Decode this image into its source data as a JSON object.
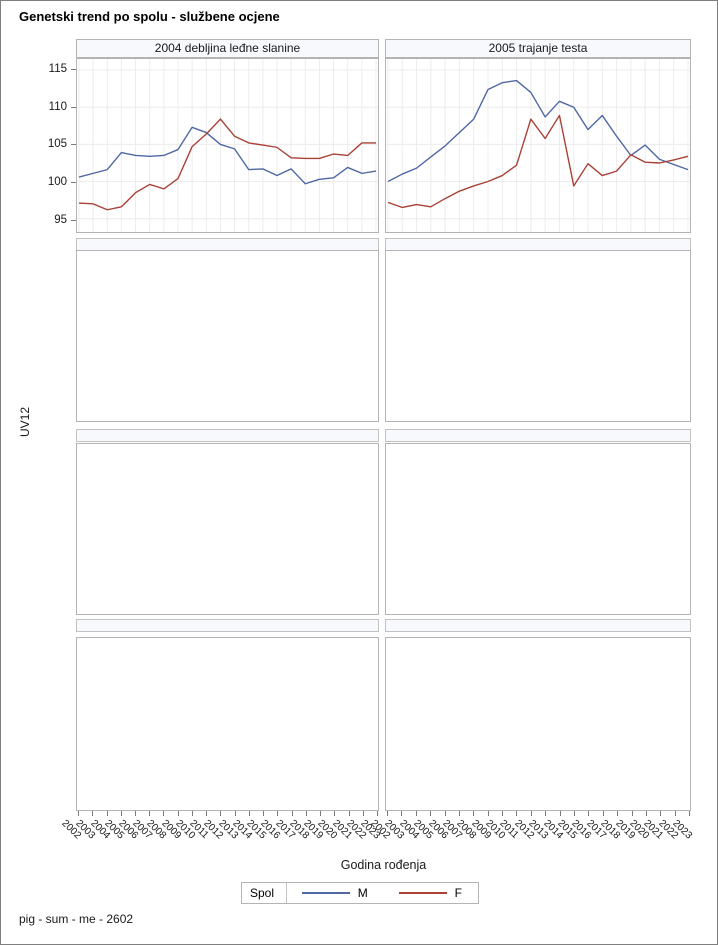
{
  "title": "Genetski trend po spolu - službene ocjene",
  "footer": "pig - sum - me - 2602",
  "colors": {
    "male_line": "#4f67a3",
    "female_line": "#a94136",
    "band_fill": "#f7f9fd",
    "gridline": "#ececec",
    "cell_border": "#b4b4b4"
  },
  "chart_data": {
    "type": "line",
    "xlabel": "Godina rođenja",
    "ylabel": "UV12",
    "ylim": [
      93.2,
      116.5
    ],
    "yticks": [
      95,
      100,
      105,
      110,
      115
    ],
    "grid": true,
    "legend_position": "bottom",
    "empty_rows": 3,
    "x": [
      2002,
      2003,
      2004,
      2005,
      2006,
      2007,
      2008,
      2009,
      2010,
      2011,
      2012,
      2013,
      2014,
      2015,
      2016,
      2017,
      2018,
      2019,
      2020,
      2021,
      2022,
      2023
    ],
    "panels": [
      {
        "header": "2004 debljina leđne slanine",
        "series": [
          {
            "name": "M",
            "values": [
              100.6,
              101.1,
              101.6,
              103.9,
              103.5,
              103.4,
              103.5,
              104.3,
              107.3,
              106.6,
              105.0,
              104.4,
              101.6,
              101.7,
              100.8,
              101.7,
              99.7,
              100.3,
              100.5,
              101.9,
              101.1,
              101.4
            ]
          },
          {
            "name": "F",
            "values": [
              97.1,
              97.0,
              96.2,
              96.6,
              98.5,
              99.6,
              99.0,
              100.4,
              104.7,
              106.4,
              108.4,
              106.1,
              105.2,
              104.9,
              104.6,
              103.2,
              103.1,
              103.1,
              103.7,
              103.5,
              105.2,
              105.2
            ]
          }
        ]
      },
      {
        "header": "2005 trajanje testa",
        "series": [
          {
            "name": "M",
            "values": [
              100.0,
              101.0,
              101.8,
              103.3,
              104.8,
              106.6,
              108.4,
              112.4,
              113.3,
              113.6,
              112.0,
              108.7,
              110.8,
              110.0,
              107.0,
              108.9,
              106.1,
              103.5,
              104.9,
              103.0,
              102.3,
              101.6
            ]
          },
          {
            "name": "F",
            "values": [
              97.2,
              96.5,
              96.9,
              96.6,
              97.7,
              98.7,
              99.4,
              100.0,
              100.8,
              102.2,
              108.4,
              105.8,
              108.9,
              99.4,
              102.4,
              100.8,
              101.4,
              103.6,
              102.6,
              102.5,
              102.9,
              103.4
            ]
          }
        ]
      }
    ],
    "legend": {
      "title": "Spol",
      "entries": [
        {
          "label": "M",
          "color": "#4f67a3"
        },
        {
          "label": "F",
          "color": "#a94136"
        }
      ]
    }
  }
}
